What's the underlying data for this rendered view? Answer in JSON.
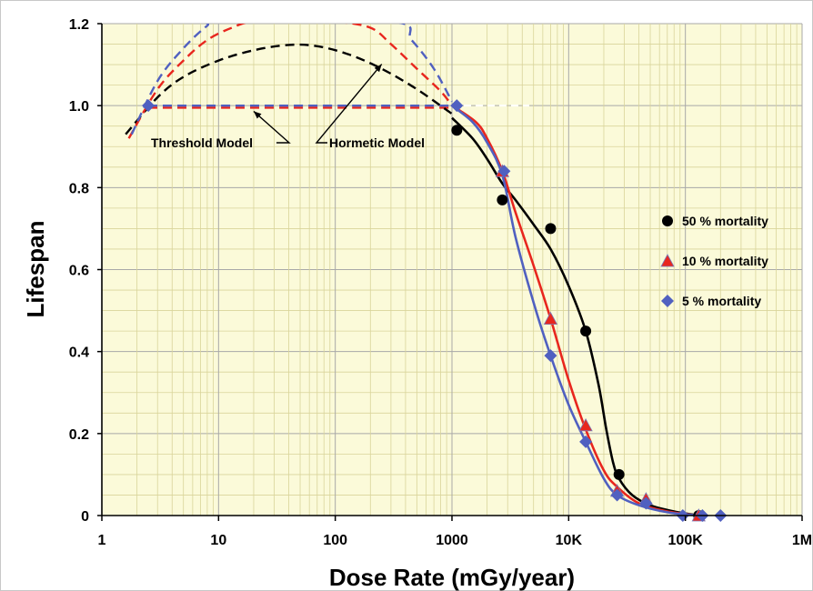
{
  "chart_data": {
    "type": "line",
    "xscale": "log",
    "xlabel": "Dose Rate (mGy/year)",
    "ylabel": "Lifespan",
    "xlim": [
      1,
      1000000
    ],
    "ylim": [
      0,
      1.2
    ],
    "grid": true,
    "legend_position": "right",
    "xticks": [
      {
        "value": 1,
        "label": "1"
      },
      {
        "value": 10,
        "label": "10"
      },
      {
        "value": 100,
        "label": "100"
      },
      {
        "value": 1000,
        "label": "1000"
      },
      {
        "value": 10000,
        "label": "10K"
      },
      {
        "value": 100000,
        "label": "100K"
      },
      {
        "value": 1000000,
        "label": "1M"
      }
    ],
    "yticks": [
      {
        "value": 0,
        "label": "0"
      },
      {
        "value": 0.2,
        "label": "0.2"
      },
      {
        "value": 0.4,
        "label": "0.4"
      },
      {
        "value": 0.6,
        "label": "0.6"
      },
      {
        "value": 0.8,
        "label": "0.8"
      },
      {
        "value": 1.0,
        "label": "1.0"
      },
      {
        "value": 1.2,
        "label": "1.2"
      }
    ],
    "series": [
      {
        "name": "50 % mortality",
        "color": "#000000",
        "marker": "circle",
        "points": [
          [
            1100,
            0.94
          ],
          [
            2700,
            0.77
          ],
          [
            7000,
            0.7
          ],
          [
            14000,
            0.45
          ],
          [
            27000,
            0.1
          ],
          [
            130000,
            0.0
          ]
        ],
        "curve": [
          [
            1000,
            0.97
          ],
          [
            1500,
            0.92
          ],
          [
            2000,
            0.87
          ],
          [
            2700,
            0.81
          ],
          [
            3500,
            0.77
          ],
          [
            5000,
            0.71
          ],
          [
            7000,
            0.65
          ],
          [
            10000,
            0.56
          ],
          [
            14000,
            0.45
          ],
          [
            18000,
            0.32
          ],
          [
            21000,
            0.21
          ],
          [
            24000,
            0.13
          ],
          [
            27000,
            0.09
          ],
          [
            35000,
            0.05
          ],
          [
            50000,
            0.025
          ],
          [
            80000,
            0.01
          ],
          [
            130000,
            0.0
          ]
        ]
      },
      {
        "name": "10 % mortality",
        "color": "#e8261e",
        "marker": "triangle",
        "points": [
          [
            2700,
            0.84
          ],
          [
            7000,
            0.48
          ],
          [
            14000,
            0.22
          ],
          [
            26000,
            0.06
          ],
          [
            46000,
            0.04
          ],
          [
            130000,
            0.0
          ]
        ],
        "curve": [
          [
            1000,
            1.0
          ],
          [
            1600,
            0.96
          ],
          [
            2000,
            0.92
          ],
          [
            2700,
            0.84
          ],
          [
            3500,
            0.74
          ],
          [
            5000,
            0.61
          ],
          [
            7000,
            0.48
          ],
          [
            10000,
            0.33
          ],
          [
            14000,
            0.21
          ],
          [
            20000,
            0.11
          ],
          [
            26000,
            0.07
          ],
          [
            40000,
            0.03
          ],
          [
            70000,
            0.01
          ],
          [
            130000,
            0.0
          ]
        ]
      },
      {
        "name": "5 % mortality",
        "color": "#5060c0",
        "marker": "diamond",
        "points": [
          [
            2.5,
            1.0
          ],
          [
            1100,
            1.0
          ],
          [
            2800,
            0.84
          ],
          [
            7000,
            0.39
          ],
          [
            14000,
            0.18
          ],
          [
            26000,
            0.05
          ],
          [
            46000,
            0.03
          ],
          [
            95000,
            0.0
          ],
          [
            140000,
            0.0
          ],
          [
            200000,
            0.0
          ]
        ],
        "curve": [
          [
            1000,
            1.0
          ],
          [
            1500,
            0.96
          ],
          [
            2000,
            0.91
          ],
          [
            2700,
            0.83
          ],
          [
            3500,
            0.68
          ],
          [
            5000,
            0.52
          ],
          [
            7000,
            0.39
          ],
          [
            10000,
            0.27
          ],
          [
            14000,
            0.18
          ],
          [
            20000,
            0.09
          ],
          [
            26000,
            0.05
          ],
          [
            40000,
            0.025
          ],
          [
            70000,
            0.008
          ],
          [
            130000,
            0.0
          ]
        ]
      }
    ],
    "model_curves": [
      {
        "model": "threshold",
        "color": "#e8261e",
        "style": "dashed",
        "points": [
          [
            2.5,
            0.995
          ],
          [
            1000,
            0.995
          ]
        ]
      },
      {
        "model": "threshold",
        "color": "#5060c0",
        "style": "dashed",
        "points": [
          [
            2.5,
            1.0
          ],
          [
            1000,
            1.0
          ]
        ]
      },
      {
        "model": "hormetic",
        "color": "#000000",
        "style": "dashed",
        "points": [
          [
            1.6,
            0.93
          ],
          [
            3,
            1.02
          ],
          [
            5,
            1.07
          ],
          [
            10,
            1.11
          ],
          [
            20,
            1.135
          ],
          [
            40,
            1.148
          ],
          [
            70,
            1.145
          ],
          [
            130,
            1.125
          ],
          [
            250,
            1.09
          ],
          [
            500,
            1.04
          ],
          [
            1000,
            0.98
          ]
        ]
      },
      {
        "model": "hormetic",
        "color": "#e8261e",
        "style": "dashed",
        "points": [
          [
            1.7,
            0.92
          ],
          [
            3,
            1.04
          ],
          [
            5,
            1.11
          ],
          [
            8,
            1.16
          ],
          [
            13,
            1.19
          ],
          [
            20,
            1.205
          ],
          [
            50,
            1.205
          ],
          [
            100,
            1.205
          ],
          [
            200,
            1.19
          ],
          [
            300,
            1.15
          ],
          [
            500,
            1.09
          ],
          [
            800,
            1.035
          ],
          [
            1000,
            1.0
          ]
        ]
      },
      {
        "model": "hormetic",
        "color": "#5060c0",
        "style": "dashed",
        "points": [
          [
            1.8,
            0.93
          ],
          [
            3,
            1.06
          ],
          [
            5,
            1.14
          ],
          [
            8,
            1.195
          ],
          [
            10,
            1.205
          ],
          [
            300,
            1.205
          ],
          [
            450,
            1.16
          ],
          [
            700,
            1.09
          ],
          [
            1000,
            1.01
          ]
        ]
      }
    ],
    "annotations": [
      {
        "text": "Threshold Model",
        "arrow_to": [
          20,
          0.995
        ]
      },
      {
        "text": "Hormetic Model",
        "arrow_to": [
          250,
          1.11
        ]
      }
    ]
  }
}
